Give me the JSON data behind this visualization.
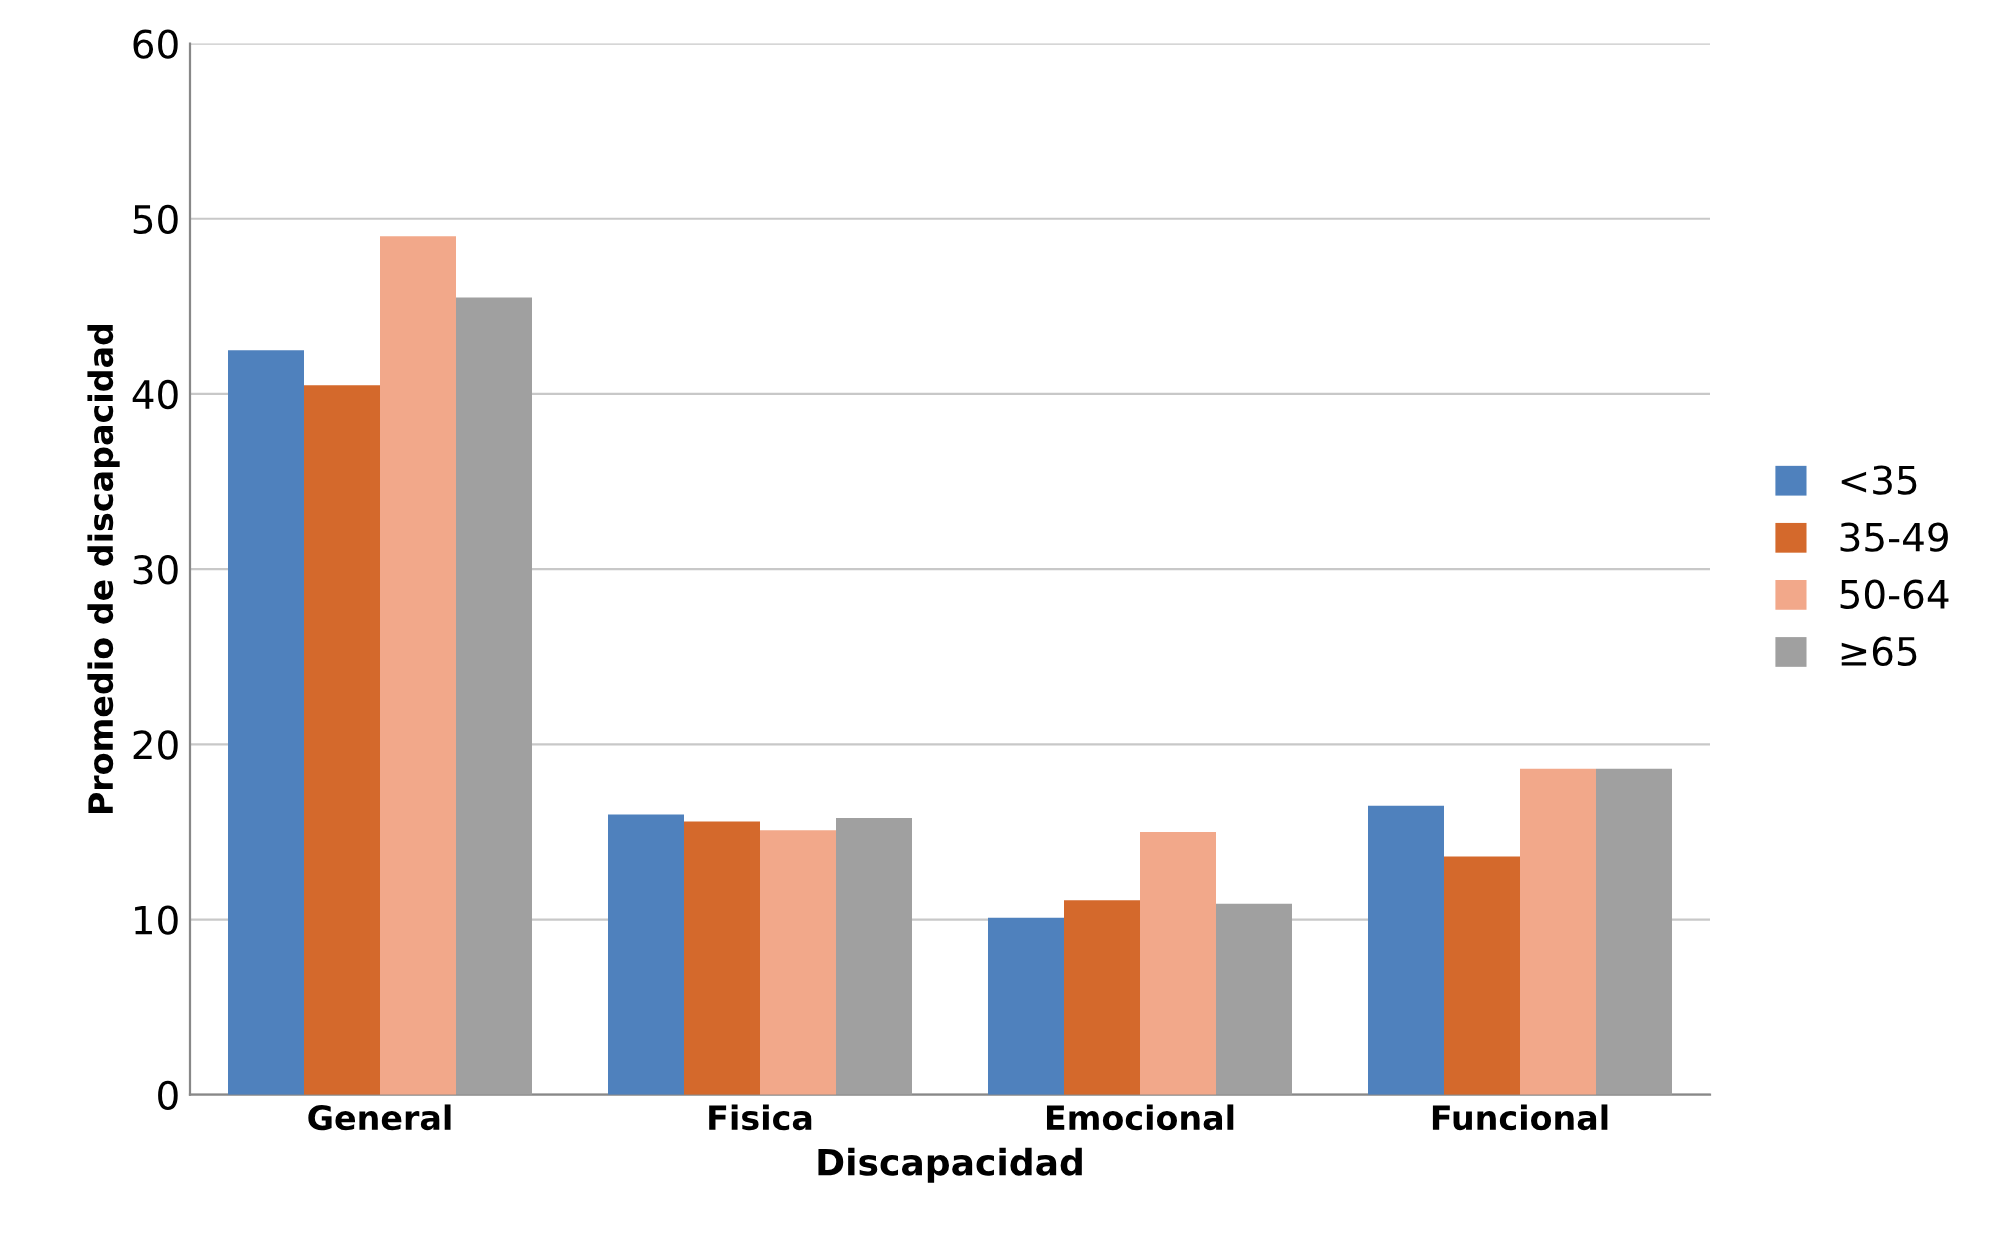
{
  "chart_data": {
    "type": "bar",
    "xlabel": "Discapacidad",
    "ylabel": "Promedio de discapacidad",
    "categories": [
      "General",
      "Fisica",
      "Emocional",
      "Funcional"
    ],
    "series": [
      {
        "name": "<35",
        "color": "#4f81bd",
        "values": [
          42.5,
          16.0,
          10.1,
          16.5
        ]
      },
      {
        "name": "35-49",
        "color": "#d4692c",
        "values": [
          40.5,
          15.6,
          11.1,
          13.6
        ]
      },
      {
        "name": "50-64",
        "color": "#f2a88a",
        "values": [
          49.0,
          15.1,
          15.0,
          18.6
        ]
      },
      {
        "name": "≥65",
        "color": "#a0a0a0",
        "values": [
          45.5,
          15.8,
          10.9,
          18.6
        ]
      }
    ],
    "ylim": [
      0,
      60
    ],
    "yticks": [
      0,
      10,
      20,
      30,
      40,
      50,
      60
    ],
    "grid": "y",
    "legend": "right"
  }
}
